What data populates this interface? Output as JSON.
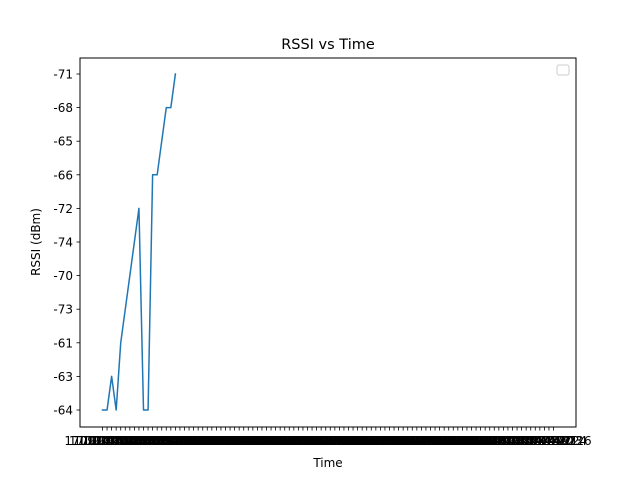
{
  "chart_data": {
    "type": "line",
    "title": "RSSI vs Time",
    "xlabel": "Time",
    "ylabel": "RSSI (dBm)",
    "x_tick_labels": [
      "1709749577",
      "1709749579",
      "1709749580",
      "1709749582",
      "1709749583",
      "1709749585",
      "1709749586",
      "1709749588",
      "1709749589",
      "1709749591",
      "1709749592",
      "1709749594",
      "1709749595",
      "1709749597",
      "1709749598",
      "1709749600",
      "1709749601",
      "1709749603",
      "1709749604",
      "1709749606",
      "1709749607",
      "1709749609",
      "1709749610",
      "1709749612",
      "1709749613",
      "1709749615",
      "1709749616",
      "1709749618",
      "1709749619",
      "1709749621",
      "1709749622",
      "1709749624",
      "1709749625",
      "1709749627",
      "1709749628",
      "1709749630",
      "1709749631",
      "1709749633",
      "1709749634",
      "1709749636",
      "1709749637",
      "1709749639",
      "1709749640",
      "1709749642",
      "1709749643",
      "1709749645",
      "1709749646",
      "1709749648",
      "1709749649",
      "1709749651",
      "1709749652",
      "1709749654",
      "1709749655",
      "1709749657",
      "1709749658",
      "1709749660",
      "1709749661",
      "1709749663",
      "1709749664",
      "1709749666",
      "1709749667",
      "1709749669",
      "1709749670",
      "1709749672",
      "1709749673",
      "1709749675",
      "1709749676",
      "1709749678",
      "1709749679",
      "1709749681",
      "1709749682",
      "1709749684",
      "1709749685",
      "1709749687",
      "1709749688",
      "1709749690",
      "1709749691",
      "1709749693",
      "1709749694",
      "1709749696",
      "1709749697",
      "1709749699",
      "1709749700",
      "1709749702",
      "1709749703",
      "1709749705",
      "1709749706",
      "1709749708",
      "1709749709",
      "1709749711",
      "1709749712",
      "1709749714",
      "1709749715",
      "1709749717",
      "1709749718",
      "1709749720",
      "1709749721",
      "1709749723",
      "1709749724",
      "1709749726"
    ],
    "y_categories": [
      "-64",
      "-63",
      "-61",
      "-73",
      "-70",
      "-74",
      "-72",
      "-66",
      "-65",
      "-68",
      "-71"
    ],
    "series": [
      {
        "color": "#1f77b4",
        "points": [
          {
            "x_index": 0,
            "y": "-64"
          },
          {
            "x_index": 1,
            "y": "-64"
          },
          {
            "x_index": 2,
            "y": "-63"
          },
          {
            "x_index": 3,
            "y": "-64"
          },
          {
            "x_index": 4,
            "y": "-61"
          },
          {
            "x_index": 5,
            "y": "-73"
          },
          {
            "x_index": 6,
            "y": "-70"
          },
          {
            "x_index": 7,
            "y": "-74"
          },
          {
            "x_index": 8,
            "y": "-72"
          },
          {
            "x_index": 9,
            "y": "-64"
          },
          {
            "x_index": 10,
            "y": "-64"
          },
          {
            "x_index": 11,
            "y": "-66"
          },
          {
            "x_index": 12,
            "y": "-66"
          },
          {
            "x_index": 13,
            "y": "-65"
          },
          {
            "x_index": 14,
            "y": "-68"
          },
          {
            "x_index": 15,
            "y": "-68"
          },
          {
            "x_index": 16,
            "y": "-71"
          }
        ]
      }
    ],
    "legend": {
      "placement": "top-right",
      "entries": []
    },
    "grid": false
  }
}
